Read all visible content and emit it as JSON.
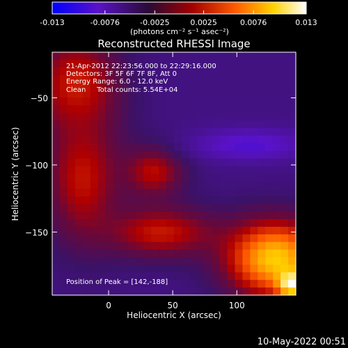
{
  "colorbar": {
    "ticks": [
      "-0.013",
      "-0.0076",
      "-0.0025",
      "0.0025",
      "0.0076",
      "0.013"
    ],
    "tick_values": [
      -0.013,
      -0.0076,
      -0.0025,
      0.0025,
      0.0076,
      0.013
    ],
    "range": [
      -0.013,
      0.013
    ],
    "units_label": "(photons cm⁻² s⁻¹ asec⁻²)",
    "stops": [
      "#0000ff",
      "#5a12c8",
      "#2a0a36",
      "#c00000",
      "#ff5a00",
      "#ffd200",
      "#ffffff"
    ]
  },
  "chart_data": {
    "type": "heatmap",
    "title": "Reconstructed RHESSI Image",
    "xlabel": "Heliocentric X (arcsec)",
    "ylabel": "Heliocentric Y (arcsec)",
    "xlim": [
      -44,
      146
    ],
    "ylim": [
      -197,
      -16
    ],
    "xticks": [
      0,
      50,
      100
    ],
    "yticks": [
      -50,
      -100,
      -150
    ],
    "info_lines": [
      "21-Apr-2012 22:23:56.000 to 22:29:16.000",
      "Detectors: 3F 5F 6F 7F 8F, Att 0",
      "Energy Range: 6.0 - 12.0 keV",
      "Clean     Total counts: 5.54E+04"
    ],
    "peak_label": "Position of Peak = [142,-188]",
    "peak": [
      142,
      -188
    ],
    "regions": [
      {
        "name": "red-upper-left",
        "center": [
          -25,
          -40
        ],
        "radius": [
          35,
          40
        ],
        "level": 0.0032
      },
      {
        "name": "red-left",
        "center": [
          -20,
          -110
        ],
        "radius": [
          30,
          50
        ],
        "level": 0.0028
      },
      {
        "name": "red-mid",
        "center": [
          35,
          -105
        ],
        "radius": [
          25,
          20
        ],
        "level": 0.0025
      },
      {
        "name": "red-lower",
        "center": [
          40,
          -150
        ],
        "radius": [
          45,
          20
        ],
        "level": 0.003
      },
      {
        "name": "blue-band",
        "center": [
          110,
          -85
        ],
        "radius": [
          45,
          12
        ],
        "level": -0.009
      },
      {
        "name": "bright-lower-right",
        "center": [
          130,
          -170
        ],
        "radius": [
          40,
          30
        ],
        "level": 0.0095
      },
      {
        "name": "peak",
        "center": [
          142,
          -188
        ],
        "radius": [
          10,
          10
        ],
        "level": 0.013
      }
    ]
  },
  "footer": {
    "date": "10-May-2022 00:51"
  }
}
